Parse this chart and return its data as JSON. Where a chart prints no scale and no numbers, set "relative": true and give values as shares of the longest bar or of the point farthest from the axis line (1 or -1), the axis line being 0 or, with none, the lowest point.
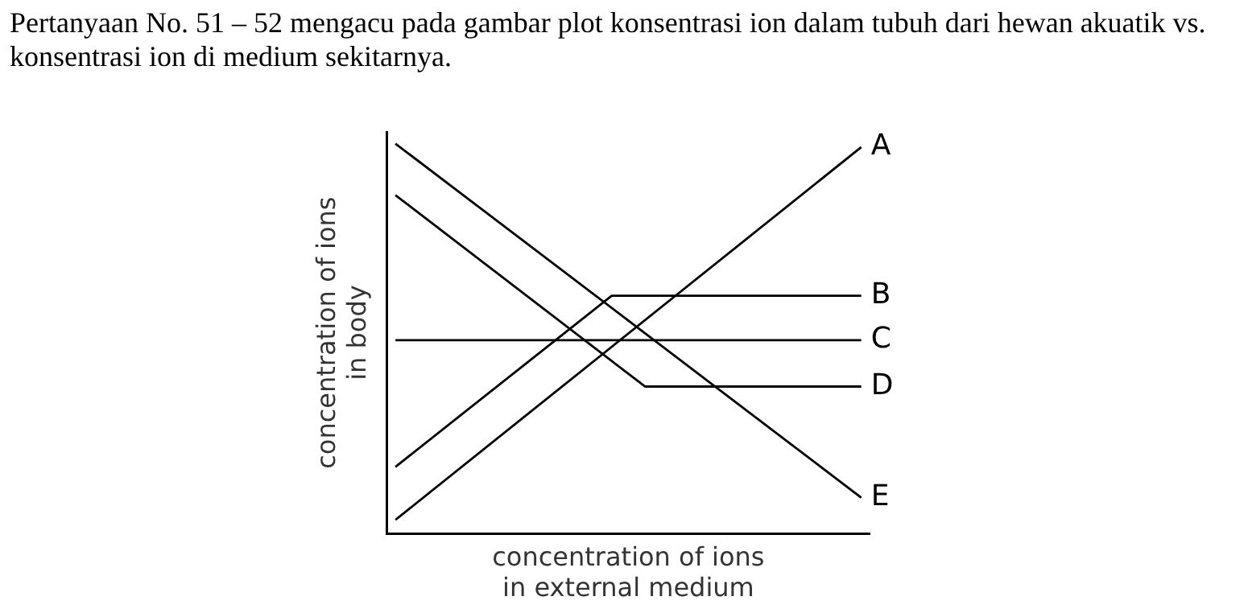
{
  "chart_data": {
    "type": "line",
    "title": "Pertanyaan No. 51 – 52 mengacu pada gambar plot konsentrasi ion dalam tubuh dari hewan akuatik vs. konsentrasi ion di medium sekitarnya.",
    "xlabel": "concentration of ions\nin external medium",
    "ylabel": "concentration of ions\nin body",
    "relative": true,
    "legend": false,
    "grid": false,
    "tick_labels": false,
    "marker": "none",
    "line_style": "solid",
    "categories": [
      null,
      null,
      null,
      null,
      null,
      null,
      null,
      null,
      null,
      null,
      null,
      null,
      null,
      null,
      null,
      null,
      null,
      null,
      null,
      null,
      null,
      null,
      null,
      null,
      null,
      null,
      null,
      null,
      null
    ],
    "series": [
      {
        "name": "A",
        "color": "#000000",
        "values": [
          0.035,
          null,
          null,
          null,
          null,
          null,
          null,
          null,
          null,
          null,
          null,
          null,
          null,
          null,
          null,
          null,
          null,
          null,
          null,
          null,
          null,
          null,
          null,
          null,
          null,
          null,
          null,
          null,
          0.991
        ]
      },
      {
        "name": "B",
        "color": "#000000",
        "values": [
          0.171,
          null,
          null,
          null,
          null,
          null,
          null,
          null,
          null,
          null,
          null,
          null,
          null,
          0.61,
          null,
          null,
          null,
          null,
          null,
          null,
          null,
          null,
          null,
          null,
          null,
          null,
          null,
          null,
          0.61
        ]
      },
      {
        "name": "C",
        "color": "#000000",
        "values": [
          0.496,
          null,
          null,
          null,
          null,
          null,
          null,
          null,
          null,
          null,
          null,
          null,
          null,
          null,
          null,
          null,
          null,
          null,
          null,
          null,
          null,
          null,
          null,
          null,
          null,
          null,
          null,
          null,
          0.496
        ]
      },
      {
        "name": "D",
        "color": "#000000",
        "values": [
          0.868,
          null,
          null,
          null,
          null,
          null,
          null,
          null,
          null,
          null,
          null,
          null,
          null,
          null,
          null,
          0.377,
          null,
          null,
          null,
          null,
          null,
          null,
          null,
          null,
          null,
          null,
          null,
          null,
          0.377
        ]
      },
      {
        "name": "E",
        "color": "#000000",
        "values": [
          1,
          null,
          null,
          null,
          null,
          null,
          null,
          null,
          null,
          null,
          null,
          null,
          null,
          null,
          null,
          null,
          null,
          null,
          null,
          null,
          null,
          null,
          null,
          null,
          null,
          null,
          null,
          null,
          0.092
        ]
      }
    ]
  }
}
